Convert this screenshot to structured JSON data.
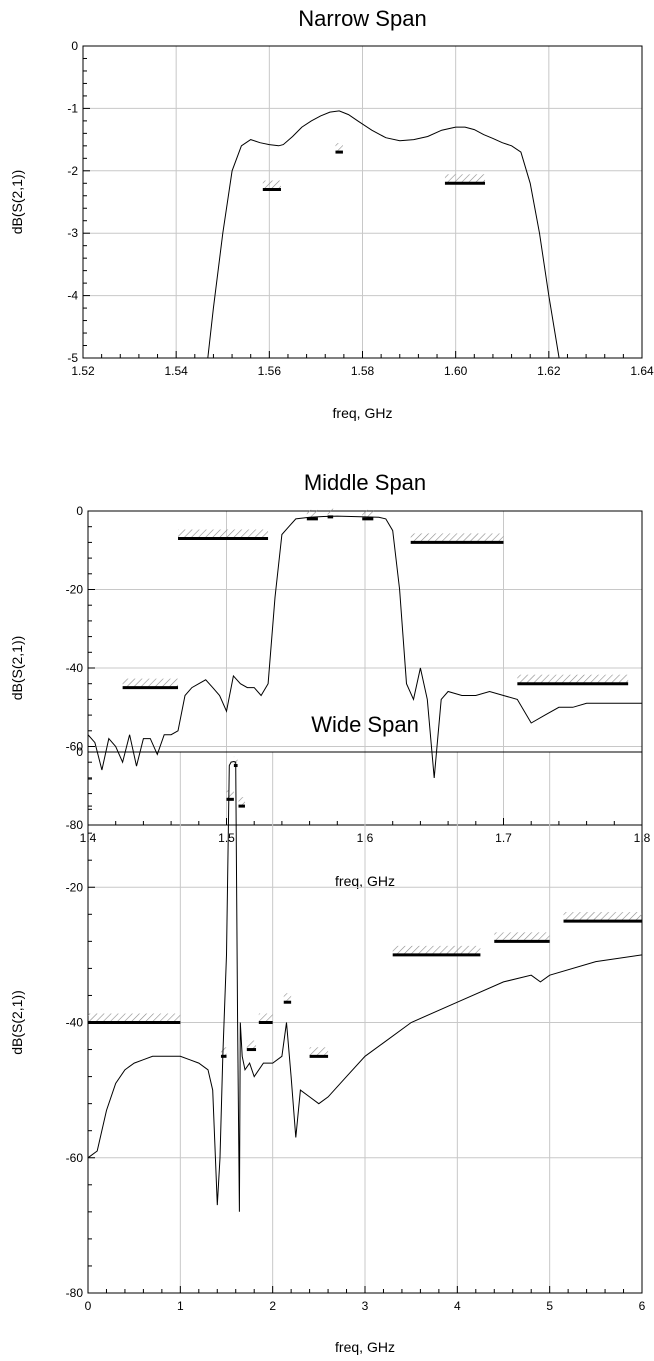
{
  "chart_data": [
    {
      "type": "line",
      "title": "Narrow Span",
      "xlabel": "freq, GHz",
      "ylabel": "dB(S(2,1))",
      "xlim": [
        1.52,
        1.64
      ],
      "ylim": [
        -5,
        0
      ],
      "xticks": [
        1.52,
        1.54,
        1.56,
        1.58,
        1.6,
        1.62,
        1.64
      ],
      "xtick_labels": [
        "1.52",
        "1.54",
        "1.56",
        "1.58",
        "1.60",
        "1.62",
        "1.64"
      ],
      "yticks": [
        -5,
        -4,
        -3,
        -2,
        -1,
        0
      ],
      "ytick_labels": [
        "-5",
        "-4",
        "-3",
        "-2",
        "-1",
        "0"
      ],
      "grid": true,
      "series": [
        {
          "x": [
            1.5468,
            1.548,
            1.55,
            1.552,
            1.554,
            1.556,
            1.558,
            1.56,
            1.562,
            1.563,
            1.565,
            1.567,
            1.569,
            1.571,
            1.573,
            1.575,
            1.577,
            1.579,
            1.582,
            1.585,
            1.588,
            1.591,
            1.594,
            1.597,
            1.6,
            1.602,
            1.604,
            1.606,
            1.608,
            1.61,
            1.612,
            1.614,
            1.616,
            1.618,
            1.62,
            1.6222
          ],
          "y": [
            -5,
            -4.2,
            -3.0,
            -2.0,
            -1.6,
            -1.5,
            -1.55,
            -1.58,
            -1.6,
            -1.58,
            -1.45,
            -1.3,
            -1.2,
            -1.12,
            -1.06,
            -1.04,
            -1.1,
            -1.2,
            -1.35,
            -1.47,
            -1.52,
            -1.5,
            -1.45,
            -1.35,
            -1.3,
            -1.3,
            -1.34,
            -1.42,
            -1.48,
            -1.55,
            -1.6,
            -1.7,
            -2.2,
            -3.0,
            -4.0,
            -5
          ]
        }
      ],
      "limit_lines": [
        {
          "x": [
            1.5586,
            1.5625
          ],
          "y": -2.3
        },
        {
          "x": [
            1.5742,
            1.5758
          ],
          "y": -1.7
        },
        {
          "x": [
            1.5977,
            1.6063
          ],
          "y": -2.2
        }
      ]
    },
    {
      "type": "line",
      "title": "Middle Span",
      "xlabel": "freq, GHz",
      "ylabel": "dB(S(2,1))",
      "xlim": [
        1.4,
        1.8
      ],
      "ylim": [
        -80,
        0
      ],
      "xticks": [
        1.4,
        1.5,
        1.6,
        1.7,
        1.8
      ],
      "xtick_labels": [
        "1.4",
        "1.5",
        "1.6",
        "1.7",
        "1.8"
      ],
      "yticks": [
        -80,
        -60,
        -40,
        -20,
        0
      ],
      "ytick_labels": [
        "-80",
        "-60",
        "-40",
        "-20",
        "0"
      ],
      "grid": true,
      "series": [
        {
          "x": [
            1.4,
            1.405,
            1.41,
            1.415,
            1.42,
            1.425,
            1.43,
            1.435,
            1.44,
            1.445,
            1.45,
            1.455,
            1.46,
            1.465,
            1.47,
            1.475,
            1.48,
            1.485,
            1.49,
            1.495,
            1.5,
            1.505,
            1.51,
            1.515,
            1.52,
            1.525,
            1.53,
            1.535,
            1.54,
            1.545,
            1.55,
            1.56,
            1.57,
            1.58,
            1.59,
            1.6,
            1.61,
            1.615,
            1.62,
            1.625,
            1.63,
            1.635,
            1.64,
            1.645,
            1.65,
            1.655,
            1.66,
            1.67,
            1.68,
            1.69,
            1.7,
            1.71,
            1.72,
            1.73,
            1.74,
            1.75,
            1.76,
            1.77,
            1.78,
            1.79,
            1.8
          ],
          "y": [
            -57,
            -59,
            -66,
            -58,
            -60,
            -64,
            -57,
            -65,
            -58,
            -58,
            -62,
            -57,
            -57,
            -56,
            -47,
            -45,
            -44,
            -43,
            -45,
            -47,
            -51,
            -42,
            -44,
            -45,
            -45,
            -47,
            -44,
            -22,
            -6,
            -4,
            -2,
            -1.6,
            -1.4,
            -1.3,
            -1.4,
            -1.5,
            -1.6,
            -2,
            -5,
            -20,
            -44,
            -48,
            -40,
            -48,
            -68,
            -48,
            -46,
            -47,
            -47,
            -46,
            -47,
            -48,
            -54,
            -52,
            -50,
            -50,
            -49,
            -49,
            -49,
            -49,
            -49
          ]
        }
      ],
      "limit_lines": [
        {
          "x": [
            1.425,
            1.465
          ],
          "y": -45
        },
        {
          "x": [
            1.465,
            1.53
          ],
          "y": -7
        },
        {
          "x": [
            1.558,
            1.566
          ],
          "y": -2
        },
        {
          "x": [
            1.573,
            1.577
          ],
          "y": -1.5
        },
        {
          "x": [
            1.598,
            1.606
          ],
          "y": -2
        },
        {
          "x": [
            1.633,
            1.7
          ],
          "y": -8
        },
        {
          "x": [
            1.71,
            1.79
          ],
          "y": -44
        }
      ]
    },
    {
      "type": "line",
      "title": "Wide Span",
      "xlabel": "freq, GHz",
      "ylabel": "dB(S(2,1))",
      "xlim": [
        0,
        6
      ],
      "ylim": [
        -80,
        0
      ],
      "xticks": [
        0,
        1,
        2,
        3,
        4,
        5,
        6
      ],
      "xtick_labels": [
        "0",
        "1",
        "2",
        "3",
        "4",
        "5",
        "6"
      ],
      "yticks": [
        -80,
        -60,
        -40,
        -20,
        0
      ],
      "ytick_labels": [
        "-80",
        "-60",
        "-40",
        "-20",
        "0"
      ],
      "grid": true,
      "series": [
        {
          "x": [
            0.0,
            0.1,
            0.2,
            0.3,
            0.4,
            0.5,
            0.6,
            0.7,
            0.8,
            0.9,
            1.0,
            1.1,
            1.2,
            1.3,
            1.35,
            1.4,
            1.43,
            1.46,
            1.5,
            1.53,
            1.55,
            1.58,
            1.6,
            1.62,
            1.64,
            1.65,
            1.67,
            1.7,
            1.75,
            1.8,
            1.9,
            2.0,
            2.1,
            2.15,
            2.2,
            2.25,
            2.3,
            2.4,
            2.5,
            2.6,
            2.8,
            3.0,
            3.2,
            3.5,
            4.0,
            4.5,
            4.8,
            4.9,
            5.0,
            5.5,
            6.0
          ],
          "y": [
            -60,
            -59,
            -53,
            -49,
            -47,
            -46,
            -45.5,
            -45,
            -45,
            -45,
            -45,
            -45.5,
            -46,
            -47,
            -50,
            -67,
            -60,
            -45,
            -30,
            -2,
            -1.5,
            -1.4,
            -1.5,
            -40,
            -68,
            -40,
            -45,
            -47,
            -46,
            -48,
            -46,
            -46,
            -45,
            -40,
            -48,
            -57,
            -50,
            -51,
            -52,
            -51,
            -48,
            -45,
            -43,
            -40,
            -37,
            -34,
            -33,
            -34,
            -33,
            -31,
            -30
          ]
        }
      ],
      "limit_lines": [
        {
          "x": [
            0.0,
            1.0
          ],
          "y": -40
        },
        {
          "x": [
            1.44,
            1.5
          ],
          "y": -45
        },
        {
          "x": [
            1.5,
            1.58
          ],
          "y": -7
        },
        {
          "x": [
            1.58,
            1.62
          ],
          "y": -2
        },
        {
          "x": [
            1.63,
            1.7
          ],
          "y": -8
        },
        {
          "x": [
            1.72,
            1.82
          ],
          "y": -44
        },
        {
          "x": [
            1.85,
            2.0
          ],
          "y": -40
        },
        {
          "x": [
            2.12,
            2.2
          ],
          "y": -37
        },
        {
          "x": [
            2.4,
            2.6
          ],
          "y": -45
        },
        {
          "x": [
            3.3,
            4.25
          ],
          "y": -30
        },
        {
          "x": [
            4.4,
            5.0
          ],
          "y": -28
        },
        {
          "x": [
            5.15,
            6.0
          ],
          "y": -25
        }
      ]
    }
  ]
}
